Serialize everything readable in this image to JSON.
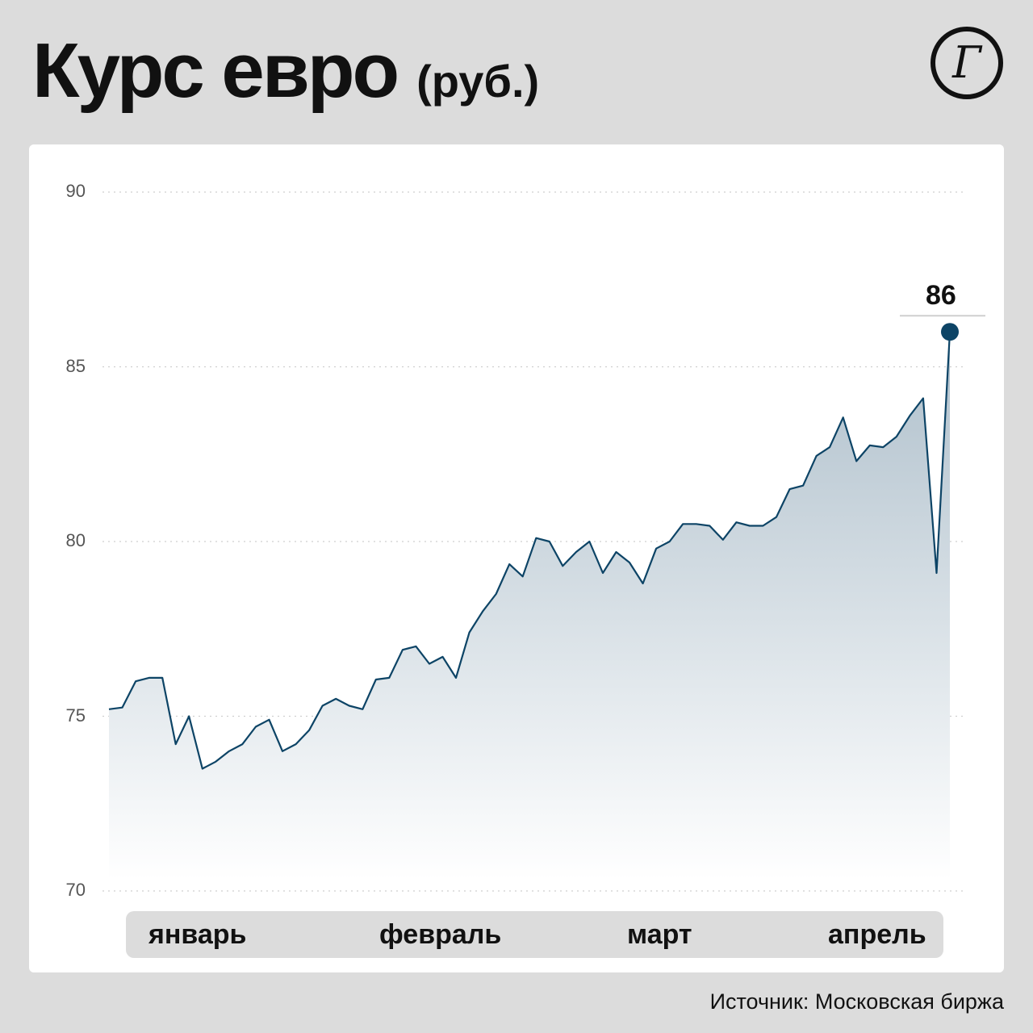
{
  "header": {
    "title": "Курс евро",
    "unit": "(руб.)"
  },
  "logo": {
    "icon": "gazeta-logo-icon",
    "letter": "Г"
  },
  "chart_data": {
    "type": "area",
    "title": "Курс евро",
    "ylabel": "(руб.)",
    "ylim": [
      70,
      90
    ],
    "yticks": [
      70,
      75,
      80,
      85,
      90
    ],
    "grid": true,
    "months": [
      "январь",
      "февраль",
      "март",
      "апрель"
    ],
    "values": [
      75.2,
      75.25,
      76.0,
      76.1,
      76.1,
      74.2,
      75.0,
      73.5,
      73.7,
      74.0,
      74.2,
      74.7,
      74.9,
      74.0,
      74.2,
      74.6,
      75.3,
      75.5,
      75.3,
      75.2,
      76.05,
      76.1,
      76.9,
      77.0,
      76.5,
      76.7,
      76.1,
      77.4,
      78.0,
      78.5,
      79.35,
      79.0,
      80.1,
      80.0,
      79.3,
      79.7,
      80.0,
      79.1,
      79.7,
      79.4,
      78.8,
      79.8,
      80.0,
      80.5,
      80.5,
      80.45,
      80.05,
      80.55,
      80.45,
      80.45,
      80.7,
      81.5,
      81.6,
      82.45,
      82.7,
      83.55,
      82.3,
      82.75,
      82.7,
      83.0,
      83.6,
      84.1,
      79.1,
      86.0
    ],
    "end_value_label": "86",
    "colors": {
      "line": "#0d4466",
      "area_top": "#aebfcb",
      "area_bottom": "#ffffff",
      "marker": "#0d4466",
      "grid": "#cfcfcf"
    }
  },
  "footer": {
    "source": "Источник: Московская биржа"
  }
}
